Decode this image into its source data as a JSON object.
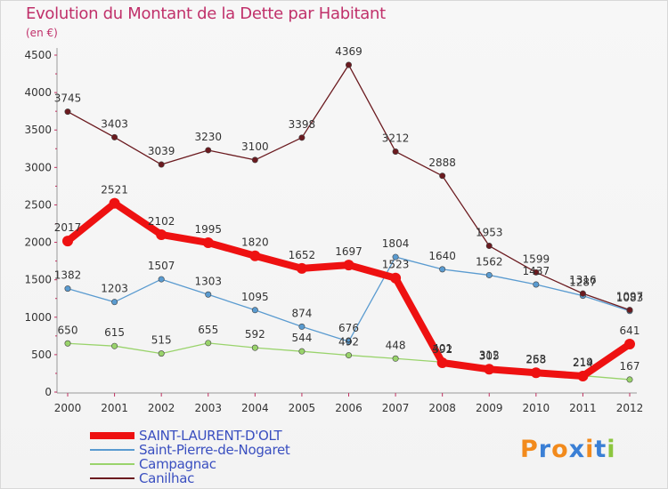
{
  "title": "Evolution du Montant de la Dette par Habitant",
  "subtitle": "(en €)",
  "logo": {
    "letters": [
      "P",
      "r",
      "o",
      "x",
      "i",
      "t",
      "i"
    ],
    "colors": [
      "#f28a1c",
      "#3a7fd5",
      "#f28a1c",
      "#3a7fd5",
      "#f28a1c",
      "#3a7fd5",
      "#8cc63f"
    ]
  },
  "chart_data": {
    "type": "line",
    "title": "Evolution du Montant de la Dette par Habitant",
    "subtitle": "(en €)",
    "categories": [
      "2000",
      "2001",
      "2002",
      "2003",
      "2004",
      "2005",
      "2006",
      "2007",
      "2008",
      "2009",
      "2010",
      "2011",
      "2012"
    ],
    "ylim": [
      0,
      4500
    ],
    "yticks": [
      0,
      500,
      1000,
      1500,
      2000,
      2500,
      3000,
      3500,
      4000,
      4500
    ],
    "grid": false,
    "legend_position": "bottom-left",
    "series": [
      {
        "name": "SAINT-LAURENT-D'OLT",
        "color": "#ee1111",
        "values": [
          2017,
          2521,
          2102,
          1995,
          1820,
          1652,
          1697,
          1523,
          392,
          305,
          258,
          214,
          641
        ]
      },
      {
        "name": "Saint-Pierre-de-Nogaret",
        "color": "#5a9bd0",
        "values": [
          1382,
          1203,
          1507,
          1303,
          1095,
          874,
          676,
          1804,
          1640,
          1562,
          1437,
          1287,
          1083
        ]
      },
      {
        "name": "Campagnac",
        "color": "#99d36b",
        "values": [
          650,
          615,
          515,
          655,
          592,
          544,
          492,
          448,
          401,
          312,
          263,
          219,
          167
        ]
      },
      {
        "name": "Canilhac",
        "color": "#6b1a1f",
        "values": [
          3745,
          3403,
          3039,
          3230,
          3100,
          3398,
          4369,
          3212,
          2888,
          1953,
          1599,
          1316,
          1097
        ]
      }
    ]
  }
}
